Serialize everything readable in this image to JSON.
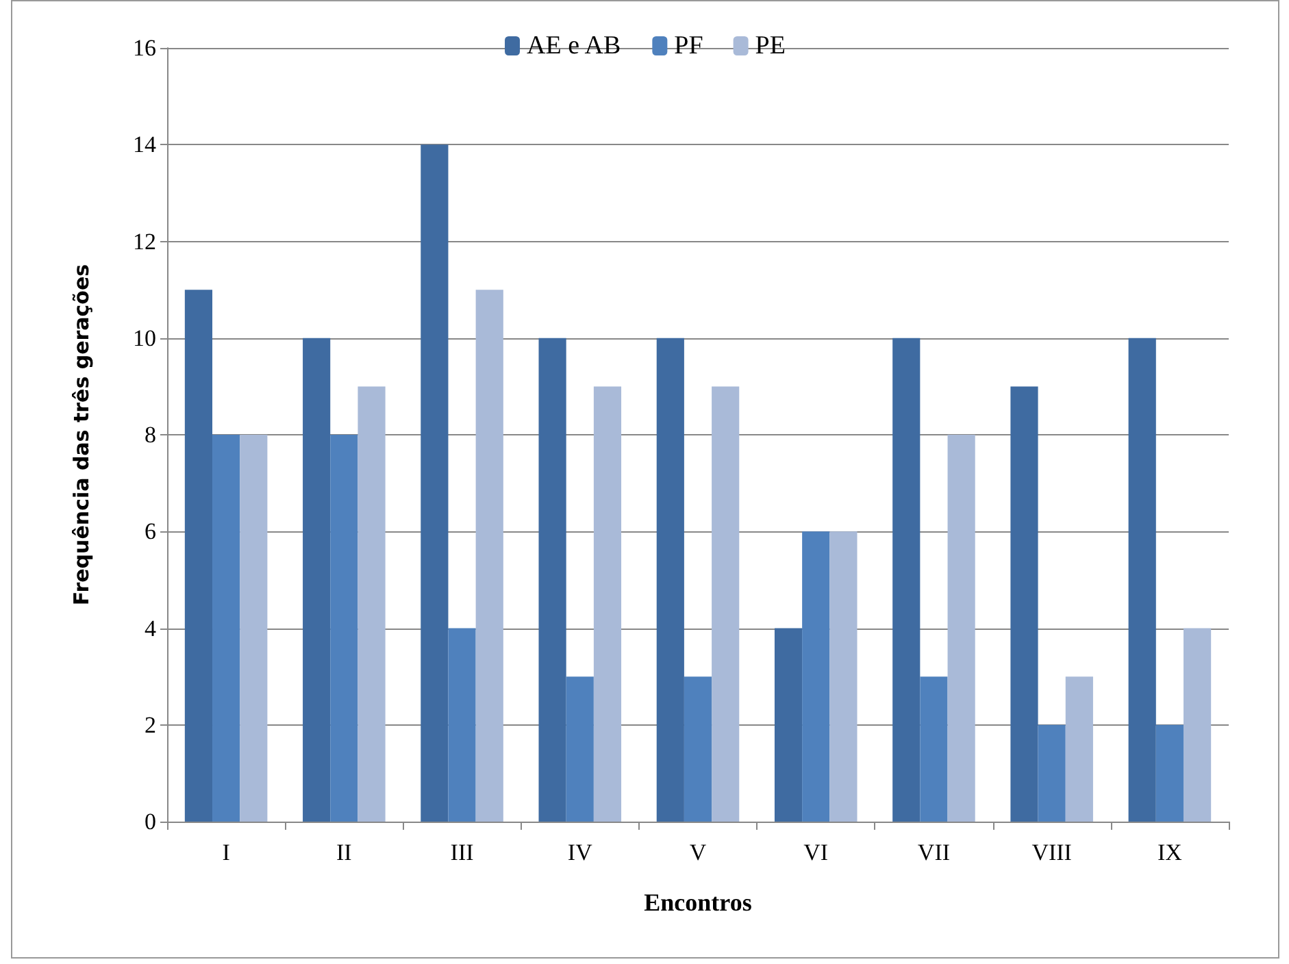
{
  "chart_data": {
    "type": "bar",
    "xlabel": "Encontros",
    "ylabel": "Frequência das três gerações",
    "categories": [
      "I",
      "II",
      "III",
      "IV",
      "V",
      "VI",
      "VII",
      "VIII",
      "IX"
    ],
    "series": [
      {
        "name": "AE e AB",
        "color": "#3f6ba1",
        "values": [
          11,
          10,
          14,
          10,
          10,
          4,
          10,
          9,
          10
        ]
      },
      {
        "name": "PF",
        "color": "#4f81bd",
        "values": [
          8,
          8,
          4,
          3,
          3,
          6,
          3,
          2,
          2
        ]
      },
      {
        "name": "PE",
        "color": "#a9bad8",
        "values": [
          8,
          9,
          11,
          9,
          9,
          6,
          8,
          3,
          4
        ]
      }
    ],
    "ylim": [
      0,
      16
    ],
    "yticks": [
      0,
      2,
      4,
      6,
      8,
      10,
      12,
      14,
      16
    ],
    "grid": "y",
    "legend": "top"
  }
}
